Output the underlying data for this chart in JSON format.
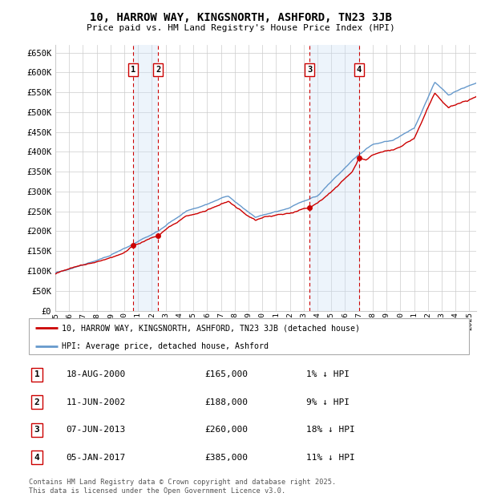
{
  "title": "10, HARROW WAY, KINGSNORTH, ASHFORD, TN23 3JB",
  "subtitle": "Price paid vs. HM Land Registry's House Price Index (HPI)",
  "ylim": [
    0,
    670000
  ],
  "yticks": [
    0,
    50000,
    100000,
    150000,
    200000,
    250000,
    300000,
    350000,
    400000,
    450000,
    500000,
    550000,
    600000,
    650000
  ],
  "xlim_start": 1995.0,
  "xlim_end": 2025.5,
  "sale_dates": [
    2000.625,
    2002.44,
    2013.44,
    2017.01
  ],
  "sale_prices": [
    165000,
    188000,
    260000,
    385000
  ],
  "sale_label_nums": [
    1,
    2,
    3,
    4
  ],
  "legend_red": "10, HARROW WAY, KINGSNORTH, ASHFORD, TN23 3JB (detached house)",
  "legend_blue": "HPI: Average price, detached house, Ashford",
  "table_rows": [
    {
      "num": 1,
      "date": "18-AUG-2000",
      "price": "£165,000",
      "hpi": "1% ↓ HPI"
    },
    {
      "num": 2,
      "date": "11-JUN-2002",
      "price": "£188,000",
      "hpi": "9% ↓ HPI"
    },
    {
      "num": 3,
      "date": "07-JUN-2013",
      "price": "£260,000",
      "hpi": "18% ↓ HPI"
    },
    {
      "num": 4,
      "date": "05-JAN-2017",
      "price": "£385,000",
      "hpi": "11% ↓ HPI"
    }
  ],
  "footer": "Contains HM Land Registry data © Crown copyright and database right 2025.\nThis data is licensed under the Open Government Licence v3.0.",
  "red_color": "#cc0000",
  "blue_color": "#6699cc",
  "shade_color": "#cce0f5",
  "grid_color": "#cccccc",
  "bg_color": "#ffffff"
}
